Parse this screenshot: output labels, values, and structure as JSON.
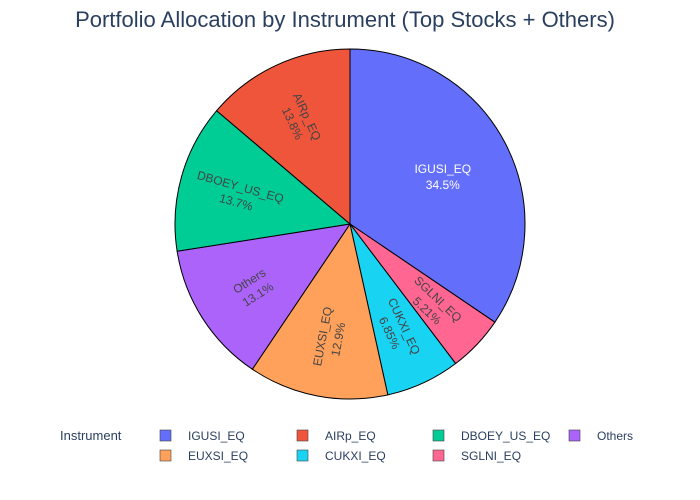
{
  "chart_data": {
    "type": "pie",
    "title": "Portfolio Allocation by Instrument (Top Stocks + Others)",
    "legend_title": "Instrument",
    "legend_position": "bottom",
    "slices": [
      {
        "label": "IGUSI_EQ",
        "value": 34.5,
        "text": "34.5%",
        "color": "#636efa",
        "text_color": "#ffffff"
      },
      {
        "label": "SGLNI_EQ",
        "value": 5.21,
        "text": "5.21%",
        "color": "#ff6692",
        "text_color": "#444444"
      },
      {
        "label": "CUKXI_EQ",
        "value": 6.85,
        "text": "6.85%",
        "color": "#19d3f3",
        "text_color": "#444444"
      },
      {
        "label": "EUXSI_EQ",
        "value": 12.9,
        "text": "12.9%",
        "color": "#ffa15a",
        "text_color": "#444444"
      },
      {
        "label": "Others",
        "value": 13.1,
        "text": "13.1%",
        "color": "#ab63fa",
        "text_color": "#444444"
      },
      {
        "label": "DBOEY_US_EQ",
        "value": 13.7,
        "text": "13.7%",
        "color": "#00cc96",
        "text_color": "#444444"
      },
      {
        "label": "AIRp_EQ",
        "value": 13.8,
        "text": "13.8%",
        "color": "#ef553b",
        "text_color": "#444444"
      }
    ],
    "legend_order": [
      "IGUSI_EQ",
      "AIRp_EQ",
      "DBOEY_US_EQ",
      "Others",
      "EUXSI_EQ",
      "CUKXI_EQ",
      "SGLNI_EQ"
    ]
  }
}
